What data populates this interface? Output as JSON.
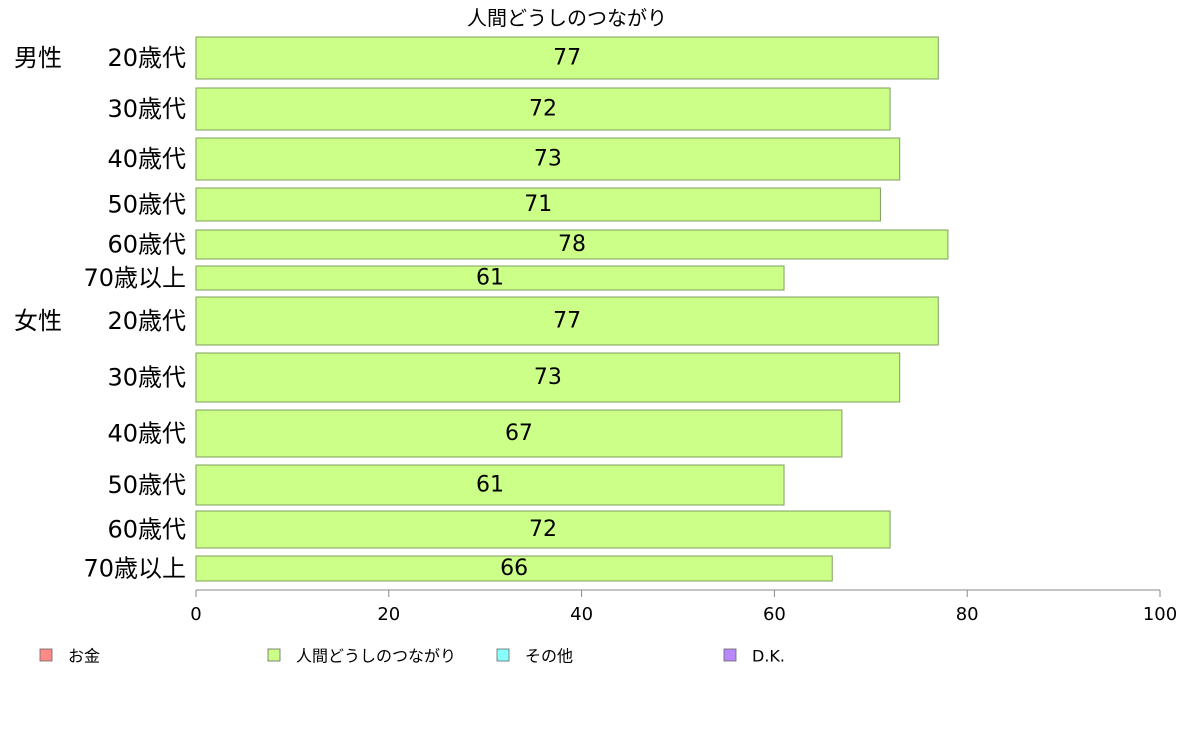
{
  "chart_data": {
    "type": "bar",
    "orientation": "horizontal",
    "title": "人間どうしのつながり",
    "xlim": [
      0,
      100
    ],
    "xticks": [
      "0",
      "20",
      "40",
      "60",
      "80",
      "100"
    ],
    "grid": false,
    "legend_position": "bottom",
    "groups": [
      {
        "name": "男性",
        "rows": [
          {
            "label": "20歳代",
            "value": 77
          },
          {
            "label": "30歳代",
            "value": 72
          },
          {
            "label": "40歳代",
            "value": 73
          },
          {
            "label": "50歳代",
            "value": 71
          },
          {
            "label": "60歳代",
            "value": 78
          },
          {
            "label": "70歳以上",
            "value": 61
          }
        ]
      },
      {
        "name": "女性",
        "rows": [
          {
            "label": "20歳代",
            "value": 77
          },
          {
            "label": "30歳代",
            "value": 73
          },
          {
            "label": "40歳代",
            "value": 67
          },
          {
            "label": "50歳代",
            "value": 61
          },
          {
            "label": "60歳代",
            "value": 72
          },
          {
            "label": "70歳以上",
            "value": 66
          }
        ]
      }
    ],
    "legend": [
      {
        "name": "お金",
        "color": "#ff8a88"
      },
      {
        "name": "人間どうしのつながり",
        "color": "#cbff88"
      },
      {
        "name": "その他",
        "color": "#88ffff"
      },
      {
        "name": "D.K.",
        "color": "#b888ff"
      }
    ]
  }
}
